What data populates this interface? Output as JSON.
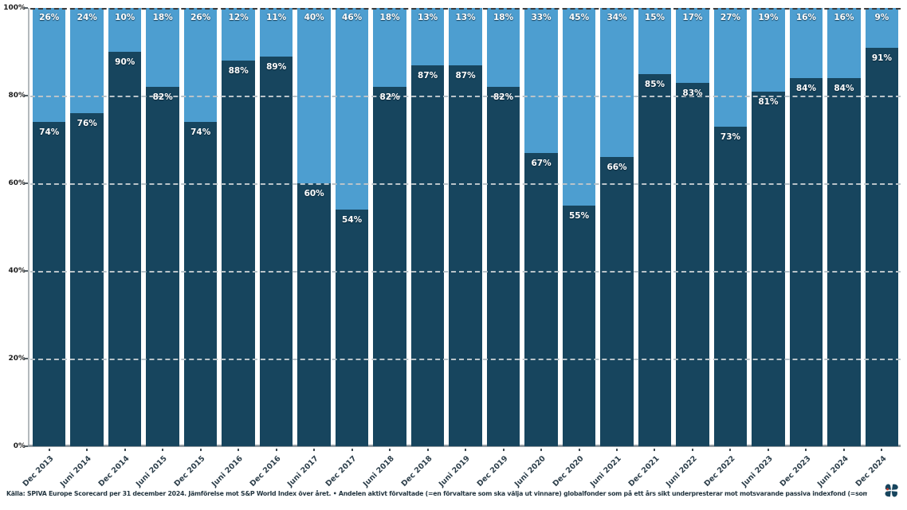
{
  "chart_data": {
    "type": "bar",
    "stacked": true,
    "orientation": "vertical",
    "categories": [
      "Dec 2013",
      "Juni 2014",
      "Dec 2014",
      "Juni 2015",
      "Dec 2015",
      "Juni 2016",
      "Dec 2016",
      "Juni 2017",
      "Dec 2017",
      "Juni 2018",
      "Dec 2018",
      "Juni 2019",
      "Dec 2019",
      "Juni 2020",
      "Dec 2020",
      "Juni 2021",
      "Dec 2021",
      "Juni 2022",
      "Dec 2022",
      "Juni 2023",
      "Dec 2023",
      "Juni 2024",
      "Dec 2024"
    ],
    "series": [
      {
        "name": "bottom-dark-segment",
        "color": "#17455E",
        "values": [
          74,
          76,
          90,
          82,
          74,
          88,
          89,
          60,
          54,
          82,
          87,
          87,
          82,
          67,
          55,
          66,
          85,
          83,
          73,
          81,
          84,
          84,
          91
        ]
      },
      {
        "name": "top-light-segment",
        "color": "#4D9ED0",
        "values": [
          26,
          24,
          10,
          18,
          26,
          12,
          11,
          40,
          46,
          18,
          13,
          13,
          18,
          33,
          45,
          34,
          15,
          17,
          27,
          19,
          16,
          16,
          9
        ]
      }
    ],
    "bar_value_labels_format": "percent",
    "ylabel": "",
    "xlabel": "",
    "ylim": [
      0,
      100
    ],
    "yticks": [
      "0%",
      "20%",
      "40%",
      "60%",
      "80%",
      "100%"
    ],
    "grid": "dashed horizontal at 20/40/60/80, dark dashed line at 100",
    "legend": "none",
    "colors": {
      "grid": "#b9c3c9",
      "top_line": "#3c3c3c",
      "axis": "#929ba1",
      "x_tick_label": "#2c3e4a",
      "value_label": "#ffffff",
      "logo_accent": "#c0392b"
    }
  },
  "caption": "Källa: SPIVA Europe Scorecard per 31 december 2024. Jämförelse mot S&P World Index över året. • Andelen aktivt förvaltade (=en förvaltare som ska välja ut vinnare) globalfonder som på ett års sikt underpresterar mot motsvarande passiva indexfond (=som bara äger allt).",
  "icons": {
    "logo": "pinwheel-butterfly-logo"
  }
}
